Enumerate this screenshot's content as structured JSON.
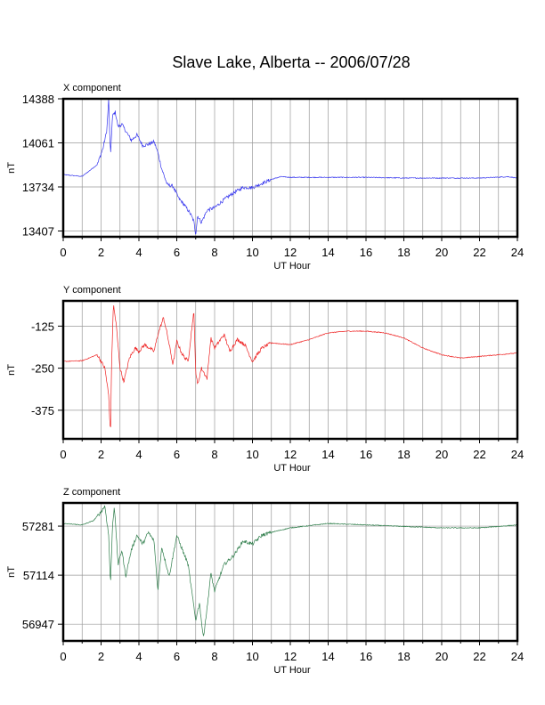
{
  "title": "Slave Lake, Alberta -- 2006/07/28",
  "chart_data": [
    {
      "type": "line",
      "title": "X component",
      "xlabel": "UT Hour",
      "ylabel": "nT",
      "xlim": [
        0,
        24
      ],
      "xticks": [
        0,
        2,
        4,
        6,
        8,
        10,
        12,
        14,
        16,
        18,
        20,
        22,
        24
      ],
      "ylim": [
        13364,
        14388
      ],
      "yticks": [
        13407,
        13734,
        14061,
        14388
      ],
      "grid": true,
      "color": "#3333ee",
      "series": [
        {
          "x": [
            0,
            1,
            1.8,
            2.1,
            2.3,
            2.4,
            2.5,
            2.6,
            2.75,
            2.9,
            3.1,
            3.3,
            3.6,
            3.9,
            4.2,
            4.5,
            4.8,
            5.0,
            5.2,
            5.5,
            5.8,
            6.1,
            6.4,
            6.7,
            6.9,
            7.0,
            7.1,
            7.3,
            7.6,
            8.0,
            8.5,
            9.0,
            9.5,
            10.0,
            10.5,
            11.0,
            11.5,
            12,
            14,
            16,
            18,
            20,
            22,
            23.5,
            24
          ],
          "y": [
            13825,
            13812,
            13900,
            14020,
            14150,
            14380,
            13960,
            14260,
            14290,
            14180,
            14200,
            14150,
            14080,
            14120,
            14040,
            14050,
            14070,
            13990,
            13870,
            13750,
            13740,
            13650,
            13600,
            13540,
            13480,
            13380,
            13520,
            13470,
            13560,
            13580,
            13640,
            13690,
            13730,
            13730,
            13760,
            13790,
            13810,
            13805,
            13805,
            13805,
            13800,
            13800,
            13800,
            13810,
            13800
          ]
        }
      ]
    },
    {
      "type": "line",
      "title": "Y component",
      "xlabel": "UT Hour",
      "ylabel": "nT",
      "xlim": [
        0,
        24
      ],
      "xticks": [
        0,
        2,
        4,
        6,
        8,
        10,
        12,
        14,
        16,
        18,
        20,
        22,
        24
      ],
      "ylim": [
        -460,
        -50
      ],
      "yticks": [
        -125,
        -250,
        -375
      ],
      "grid": true,
      "color": "#ee2222",
      "series": [
        {
          "x": [
            0,
            1,
            1.8,
            2.2,
            2.4,
            2.5,
            2.55,
            2.65,
            2.8,
            3.0,
            3.2,
            3.5,
            3.8,
            4.0,
            4.3,
            4.8,
            5.0,
            5.3,
            5.5,
            5.8,
            6.0,
            6.3,
            6.6,
            6.9,
            7.0,
            7.1,
            7.3,
            7.6,
            7.8,
            8.0,
            8.5,
            8.8,
            9.2,
            9.6,
            10.0,
            10.5,
            11.0,
            12,
            13,
            14,
            15,
            16,
            17,
            18,
            19,
            20,
            21,
            22,
            23,
            24
          ],
          "y": [
            -230,
            -228,
            -210,
            -250,
            -330,
            -450,
            -250,
            -60,
            -120,
            -250,
            -290,
            -220,
            -190,
            -200,
            -180,
            -200,
            -150,
            -100,
            -150,
            -240,
            -170,
            -210,
            -230,
            -80,
            -260,
            -300,
            -250,
            -280,
            -160,
            -190,
            -150,
            -200,
            -165,
            -180,
            -230,
            -190,
            -175,
            -180,
            -165,
            -145,
            -140,
            -140,
            -145,
            -160,
            -190,
            -210,
            -220,
            -215,
            -210,
            -205
          ]
        }
      ]
    },
    {
      "type": "line",
      "title": "Z component",
      "xlabel": "UT Hour",
      "ylabel": "nT",
      "xlim": [
        0,
        24
      ],
      "xticks": [
        0,
        2,
        4,
        6,
        8,
        10,
        12,
        14,
        16,
        18,
        20,
        22,
        24
      ],
      "ylim": [
        56890,
        57360
      ],
      "yticks": [
        56947,
        57114,
        57281
      ],
      "grid": true,
      "color": "#2e7d4a",
      "series": [
        {
          "x": [
            0,
            1,
            1.6,
            2.0,
            2.2,
            2.4,
            2.5,
            2.6,
            2.7,
            2.9,
            3.1,
            3.3,
            3.6,
            3.9,
            4.2,
            4.5,
            4.8,
            5.0,
            5.2,
            5.6,
            6.0,
            6.3,
            6.6,
            7.0,
            7.2,
            7.4,
            7.6,
            7.8,
            8.0,
            8.5,
            9.0,
            9.5,
            10,
            10.5,
            11,
            12,
            14,
            16,
            18,
            20,
            22,
            24
          ],
          "y": [
            57290,
            57285,
            57300,
            57330,
            57350,
            57250,
            57080,
            57280,
            57350,
            57150,
            57200,
            57110,
            57200,
            57250,
            57220,
            57260,
            57230,
            57060,
            57210,
            57110,
            57250,
            57200,
            57150,
            56960,
            57020,
            56900,
            57000,
            57120,
            57060,
            57150,
            57180,
            57230,
            57220,
            57250,
            57260,
            57275,
            57290,
            57285,
            57280,
            57275,
            57275,
            57285
          ]
        }
      ]
    }
  ]
}
